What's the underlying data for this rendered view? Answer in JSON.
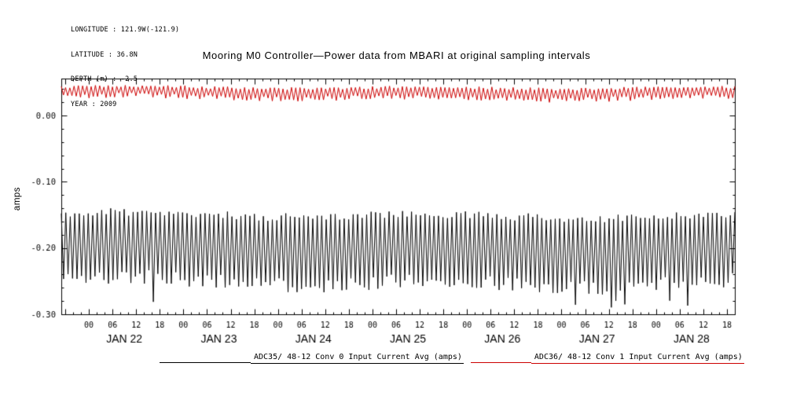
{
  "station_info": {
    "longitude": "LONGITUDE : 121.9W(-121.9)",
    "latitude": "LATITUDE : 36.8N",
    "depth": "DEPTH (m) : -2.5",
    "year": "YEAR : 2009"
  },
  "chart_data": {
    "type": "line",
    "title": "Mooring M0 Controller—Power data from MBARI at original sampling intervals",
    "ylabel": "amps",
    "ylim": [
      -0.3,
      0.056
    ],
    "ytick_values": [
      0.0,
      -0.1,
      -0.2,
      -0.3
    ],
    "ytick_labels": [
      "0.00",
      "-0.10",
      "-0.20",
      "-0.30"
    ],
    "y_minor_step": 0.02,
    "x_start_hours": -7,
    "x_end_hours": 164,
    "x_major_step_hours": 6,
    "x_minor_step_hours": 2,
    "x_label_max_hours": 162,
    "hour_tick_labels": [
      "00",
      "06",
      "12",
      "18"
    ],
    "days": [
      "JAN 22",
      "JAN 23",
      "JAN 24",
      "JAN 25",
      "JAN 26",
      "JAN 27",
      "JAN 28"
    ],
    "grid": false,
    "legend_position": "bottom",
    "axis_color": "#000000",
    "series": [
      {
        "name": "ADC35/ 48-12 Conv 0 Input Current Avg (amps)",
        "color": "#000000",
        "description": "dense sawtooth oscillation between approx -0.15 and -0.25 amps with occasional dips near -0.29",
        "approx_high": -0.15,
        "approx_low": -0.251,
        "spike_low": -0.284,
        "spike_prob": 0.05,
        "envelope_wander": 0.005,
        "jitter": 0.012,
        "oscillation_cycles": 150,
        "seed": 11,
        "line_width": 1
      },
      {
        "name": "ADC36/ 48-12 Conv 1 Input Current Avg (amps)",
        "color": "#cc0000",
        "description": "dense sawtooth oscillation between approx 0.027 and 0.043 amps",
        "approx_high": 0.0425,
        "approx_low": 0.0275,
        "spike_low": null,
        "spike_prob": 0,
        "envelope_wander": 0.0022,
        "jitter": 0.004,
        "oscillation_cycles": 158,
        "seed": 5,
        "line_width": 1
      }
    ]
  }
}
